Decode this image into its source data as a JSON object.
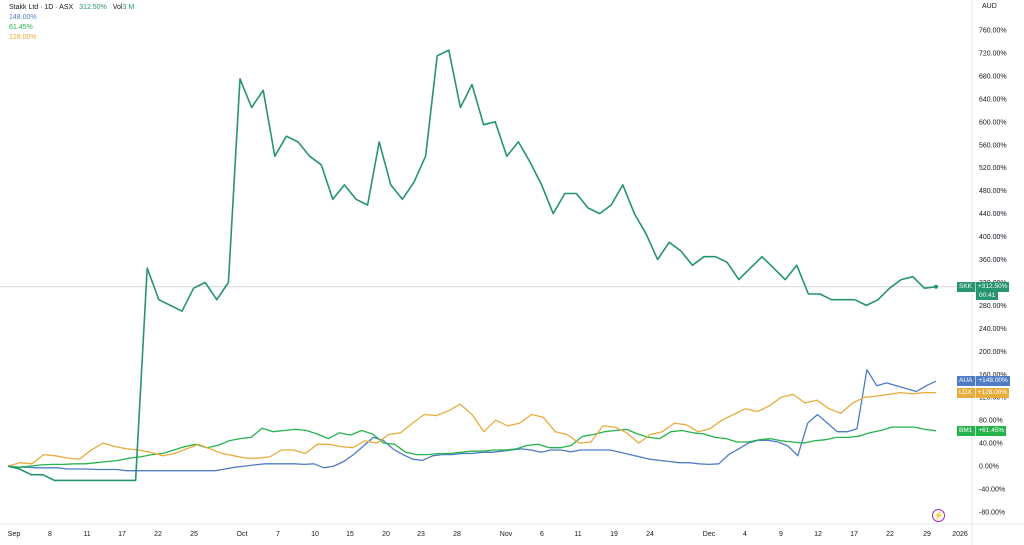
{
  "header": {
    "title": "Stakk Ltd · 1D · ASX",
    "main_value": "312.50%",
    "volume_label": "Vol",
    "volume_value": "3 M",
    "compare_values": [
      "148.00%",
      "61.45%",
      "128.00%"
    ]
  },
  "currency": "AUD",
  "icon": "tradingview-lightning-icon",
  "chart_data": {
    "type": "line",
    "title": "Stakk Ltd · 1D · ASX",
    "xlabel": "",
    "ylabel": "",
    "ylim": [
      -80,
      760
    ],
    "yticks": [
      "760.00%",
      "720.00%",
      "680.00%",
      "640.00%",
      "600.00%",
      "560.00%",
      "520.00%",
      "480.00%",
      "440.00%",
      "400.00%",
      "360.00%",
      "320.00%",
      "280.00%",
      "240.00%",
      "200.00%",
      "160.00%",
      "120.00%",
      "80.00%",
      "40.00%",
      "0.00%",
      "-40.00%",
      "-80.00%"
    ],
    "xticks": [
      "Sep",
      "8",
      "11",
      "17",
      "22",
      "25",
      "Oct",
      "7",
      "10",
      "15",
      "20",
      "23",
      "28",
      "Nov",
      "6",
      "11",
      "19",
      "24",
      "Dec",
      "4",
      "9",
      "12",
      "17",
      "22",
      "29",
      "2026"
    ],
    "grid": false,
    "series": [
      {
        "name": "SKK",
        "color": "#26946f",
        "last_label": "+312.50%",
        "countdown": "00:41",
        "values": [
          0,
          -5,
          -15,
          -15,
          -25,
          -25,
          -25,
          -25,
          -25,
          -25,
          -25,
          -25,
          345,
          290,
          280,
          270,
          310,
          320,
          290,
          320,
          675,
          625,
          655,
          540,
          575,
          565,
          540,
          525,
          465,
          490,
          465,
          455,
          565,
          490,
          465,
          495,
          540,
          715,
          725,
          625,
          665,
          595,
          600,
          540,
          565,
          530,
          490,
          440,
          475,
          475,
          450,
          440,
          455,
          490,
          440,
          405,
          360,
          390,
          375,
          350,
          365,
          365,
          355,
          325,
          345,
          365,
          345,
          325,
          350,
          300,
          300,
          290,
          290,
          290,
          280,
          290,
          310,
          325,
          330,
          310,
          312.5
        ]
      },
      {
        "name": "AUA",
        "color": "#4e7dc4",
        "last_label": "+148.00%",
        "values": [
          0,
          -2,
          -2,
          -3,
          -3,
          -3,
          -5,
          -5,
          -5,
          -6,
          -6,
          -6,
          -8,
          -8,
          -8,
          -8,
          -8,
          -8,
          -8,
          -8,
          -8,
          -8,
          -5,
          -2,
          0,
          2,
          4,
          4,
          4,
          4,
          3,
          4,
          -3,
          0,
          8,
          20,
          35,
          50,
          45,
          30,
          20,
          12,
          10,
          18,
          20,
          20,
          22,
          22,
          24,
          24,
          26,
          28,
          30,
          28,
          24,
          28,
          28,
          25,
          28,
          28,
          28,
          28,
          24,
          20,
          16,
          12,
          10,
          8,
          6,
          6,
          4,
          3,
          4,
          20,
          30,
          40,
          45,
          45,
          42,
          35,
          18,
          75,
          90,
          75,
          60,
          60,
          65,
          168,
          140,
          145,
          140,
          135,
          130,
          140,
          148
        ]
      },
      {
        "name": "BM1",
        "color": "#27b34b",
        "last_label": "+61.45%",
        "values": [
          0,
          -2,
          0,
          2,
          3,
          3,
          4,
          4,
          6,
          8,
          10,
          14,
          16,
          20,
          22,
          28,
          34,
          38,
          32,
          36,
          44,
          48,
          50,
          66,
          60,
          62,
          64,
          62,
          56,
          48,
          58,
          54,
          62,
          56,
          40,
          38,
          24,
          20,
          20,
          22,
          22,
          24,
          26,
          26,
          28,
          28,
          30,
          36,
          38,
          32,
          32,
          36,
          52,
          55,
          60,
          62,
          64,
          56,
          50,
          48,
          60,
          62,
          58,
          56,
          50,
          48,
          42,
          42,
          46,
          48,
          44,
          42,
          40,
          44,
          46,
          50,
          50,
          52,
          58,
          62,
          68,
          68,
          68,
          64,
          61.45
        ]
      },
      {
        "name": "LDX",
        "color": "#e8ac3d",
        "last_label": "+128.00%",
        "values": [
          0,
          6,
          4,
          20,
          18,
          14,
          12,
          28,
          40,
          34,
          30,
          28,
          24,
          18,
          22,
          30,
          38,
          30,
          22,
          18,
          14,
          14,
          16,
          28,
          28,
          22,
          38,
          38,
          34,
          32,
          44,
          40,
          55,
          58,
          75,
          90,
          88,
          96,
          108,
          90,
          60,
          80,
          70,
          75,
          90,
          85,
          60,
          55,
          40,
          42,
          70,
          68,
          58,
          40,
          55,
          60,
          75,
          72,
          60,
          65,
          80,
          90,
          100,
          95,
          105,
          120,
          125,
          110,
          115,
          100,
          92,
          110,
          120,
          122,
          125,
          128,
          126,
          128,
          128
        ]
      }
    ],
    "reference_line": {
      "label": "",
      "value": 312.5
    }
  }
}
